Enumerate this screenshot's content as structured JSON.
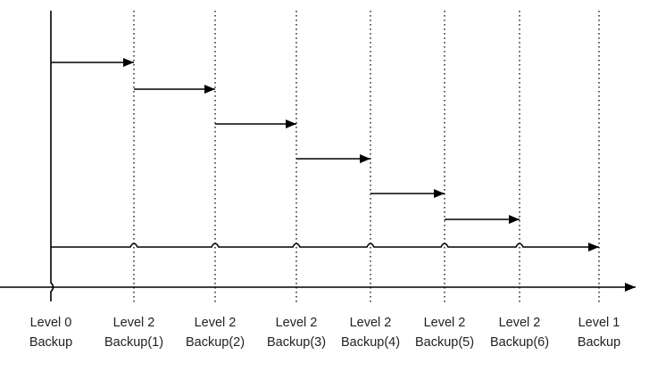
{
  "diagram": {
    "stroke_color": "#000000",
    "text_color": "#222222",
    "background": "#ffffff",
    "backups": [
      {
        "line1": "Level 0",
        "line2": "Backup"
      },
      {
        "line1": "Level 2",
        "line2": "Backup(1)"
      },
      {
        "line1": "Level 2",
        "line2": "Backup(2)"
      },
      {
        "line1": "Level 2",
        "line2": "Backup(3)"
      },
      {
        "line1": "Level 2",
        "line2": "Backup(4)"
      },
      {
        "line1": "Level 2",
        "line2": "Backup(5)"
      },
      {
        "line1": "Level 2",
        "line2": "Backup(6)"
      },
      {
        "line1": "Level 1",
        "line2": "Backup"
      }
    ],
    "incremental_arrows": [
      {
        "from": 0,
        "to": 1
      },
      {
        "from": 1,
        "to": 2
      },
      {
        "from": 2,
        "to": 3
      },
      {
        "from": 3,
        "to": 4
      },
      {
        "from": 4,
        "to": 5
      },
      {
        "from": 5,
        "to": 6
      }
    ],
    "long_arrow": {
      "from": 0,
      "to": 7
    }
  }
}
